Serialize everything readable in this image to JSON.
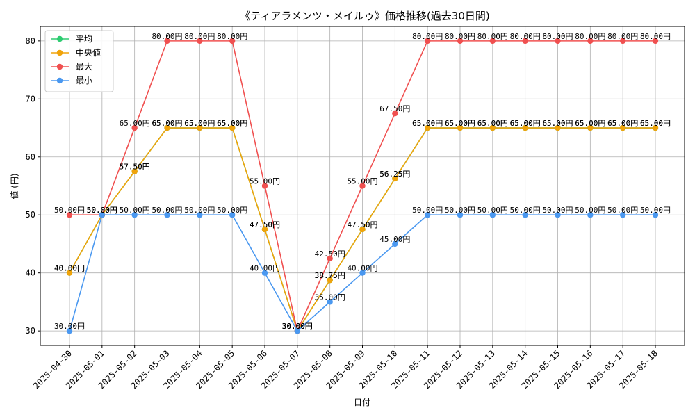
{
  "chart_data": {
    "type": "line",
    "title": "《ティアラメンツ・メイルゥ》価格推移(過去30日間)",
    "xlabel": "日付",
    "ylabel": "値 (円)",
    "ylim": [
      27.5,
      82.5
    ],
    "yticks": [
      30,
      40,
      50,
      60,
      70,
      80
    ],
    "grid": true,
    "legend_position": "top-left",
    "value_suffix": "円",
    "categories": [
      "2025-04-30",
      "2025-05-01",
      "2025-05-02",
      "2025-05-03",
      "2025-05-04",
      "2025-05-05",
      "2025-05-06",
      "2025-05-07",
      "2025-05-08",
      "2025-05-09",
      "2025-05-10",
      "2025-05-11",
      "2025-05-12",
      "2025-05-13",
      "2025-05-14",
      "2025-05-15",
      "2025-05-16",
      "2025-05-17",
      "2025-05-18"
    ],
    "series": [
      {
        "name": "平均",
        "color": "#2ecc71",
        "values": [
          40.0,
          50.0,
          57.5,
          65.0,
          65.0,
          65.0,
          47.5,
          30.0,
          38.75,
          47.5,
          56.25,
          65.0,
          65.0,
          65.0,
          65.0,
          65.0,
          65.0,
          65.0,
          65.0
        ]
      },
      {
        "name": "中央値",
        "color": "#f0a30a",
        "values": [
          40.0,
          50.0,
          57.5,
          65.0,
          65.0,
          65.0,
          47.5,
          30.0,
          38.75,
          47.5,
          56.25,
          65.0,
          65.0,
          65.0,
          65.0,
          65.0,
          65.0,
          65.0,
          65.0
        ]
      },
      {
        "name": "最大",
        "color": "#f05050",
        "values": [
          50.0,
          50.0,
          65.0,
          80.0,
          80.0,
          80.0,
          55.0,
          30.0,
          42.5,
          55.0,
          67.5,
          80.0,
          80.0,
          80.0,
          80.0,
          80.0,
          80.0,
          80.0,
          80.0
        ]
      },
      {
        "name": "最小",
        "color": "#4a98f0",
        "values": [
          30.0,
          50.0,
          50.0,
          50.0,
          50.0,
          50.0,
          40.0,
          30.0,
          35.0,
          40.0,
          45.0,
          50.0,
          50.0,
          50.0,
          50.0,
          50.0,
          50.0,
          50.0,
          50.0
        ]
      }
    ]
  }
}
